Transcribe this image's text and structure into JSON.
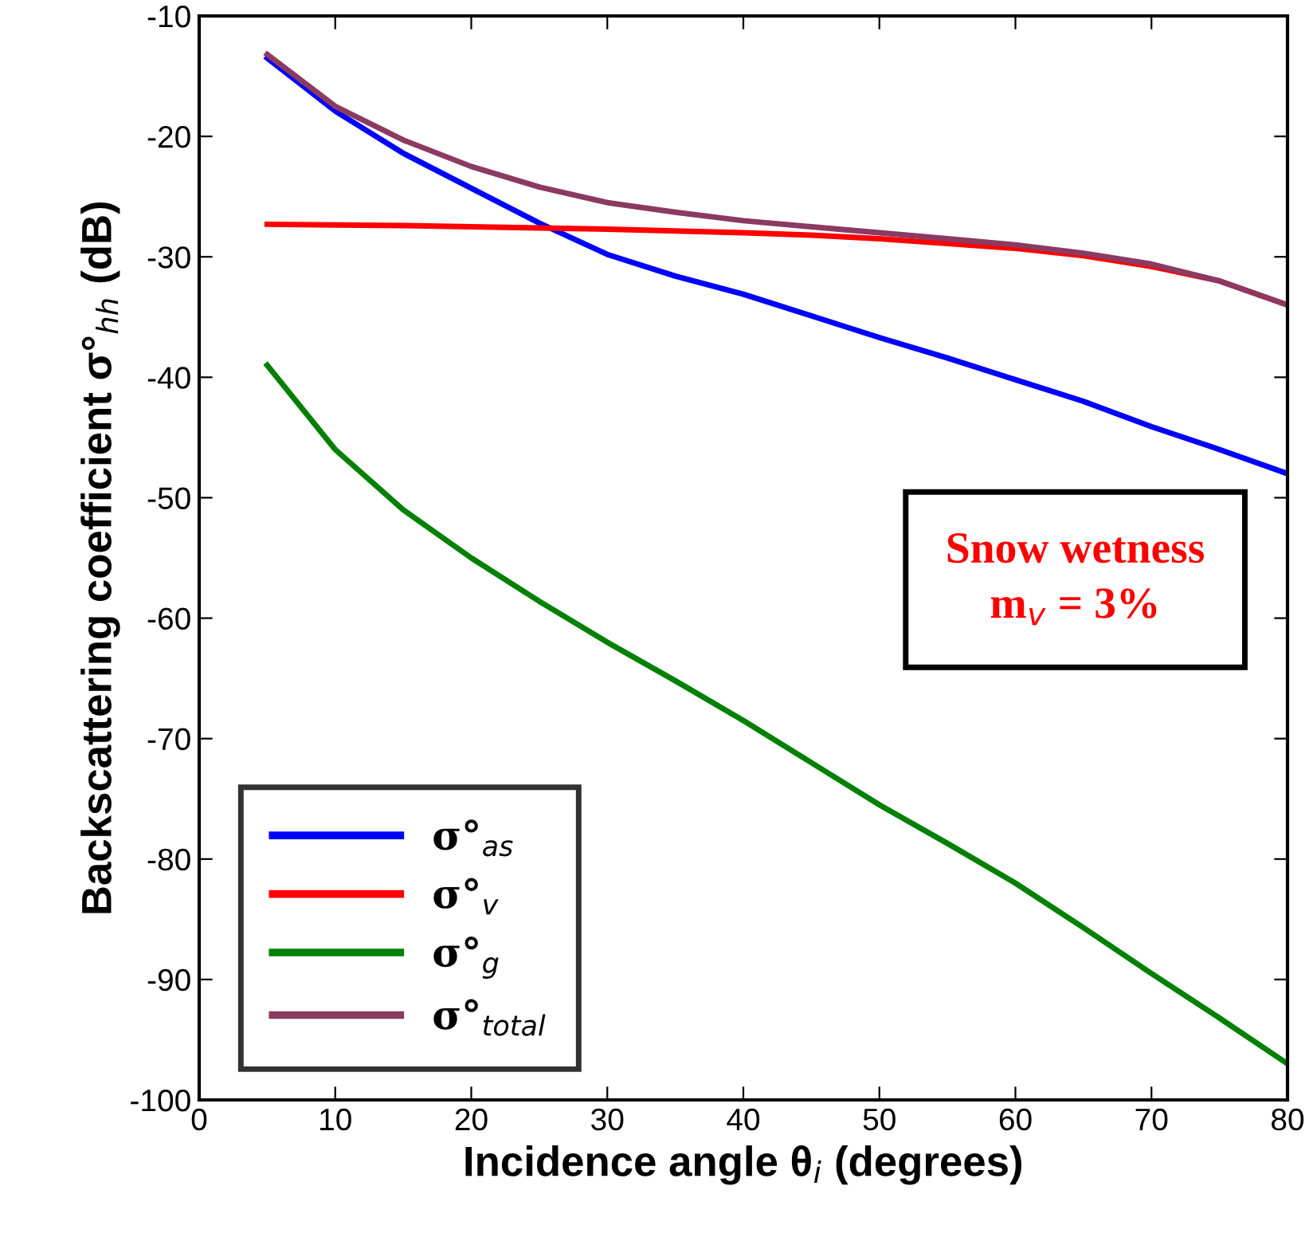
{
  "chart_data": {
    "type": "line",
    "xlabel": "Incidence angle θ$_{i}$ (degrees)",
    "ylabel": "Backscattering coefficient σ°$_{hh}$ (dB)",
    "x": [
      5,
      10,
      15,
      20,
      25,
      30,
      35,
      40,
      45,
      50,
      55,
      60,
      65,
      70,
      75,
      80
    ],
    "series": [
      {
        "name": "σ°$_{as}$",
        "color": "#0000ff",
        "values": [
          -13.5,
          -17.9,
          -21.4,
          -24.3,
          -27.2,
          -29.8,
          -31.6,
          -33.1,
          -34.9,
          -36.7,
          -38.4,
          -40.2,
          -42.0,
          -44.1,
          -46.0,
          -48.0
        ]
      },
      {
        "name": "σ°$_{v}$",
        "color": "#ff0000",
        "values": [
          -27.3,
          -27.35,
          -27.4,
          -27.5,
          -27.6,
          -27.7,
          -27.85,
          -28.0,
          -28.2,
          -28.5,
          -28.9,
          -29.3,
          -29.9,
          -30.8,
          -32.0,
          -34.0
        ]
      },
      {
        "name": "σ°$_{g}$",
        "color": "#008000",
        "values": [
          -39.0,
          -46.0,
          -51.0,
          -55.0,
          -58.6,
          -62.0,
          -65.2,
          -68.5,
          -72.0,
          -75.5,
          -78.7,
          -82.0,
          -85.7,
          -89.5,
          -93.2,
          -97.0
        ]
      },
      {
        "name": "σ°$_{total}$",
        "color": "#8b3a62",
        "values": [
          -13.2,
          -17.5,
          -20.3,
          -22.5,
          -24.2,
          -25.5,
          -26.3,
          -27.0,
          -27.5,
          -28.0,
          -28.5,
          -29.0,
          -29.7,
          -30.6,
          -32.0,
          -34.0
        ]
      }
    ],
    "xlim": [
      0,
      80
    ],
    "xticks": [
      0,
      10,
      20,
      30,
      40,
      50,
      60,
      70,
      80
    ],
    "ylim": [
      -100,
      -10
    ],
    "yticks": [
      -100,
      -90,
      -80,
      -70,
      -60,
      -50,
      -40,
      -30,
      -20,
      -10
    ],
    "grid": false,
    "legend": "bottom left",
    "marker": "none",
    "line_style": "solid",
    "annotations": [
      "Snow wetness",
      "m$_{v}$ = 3%"
    ]
  }
}
